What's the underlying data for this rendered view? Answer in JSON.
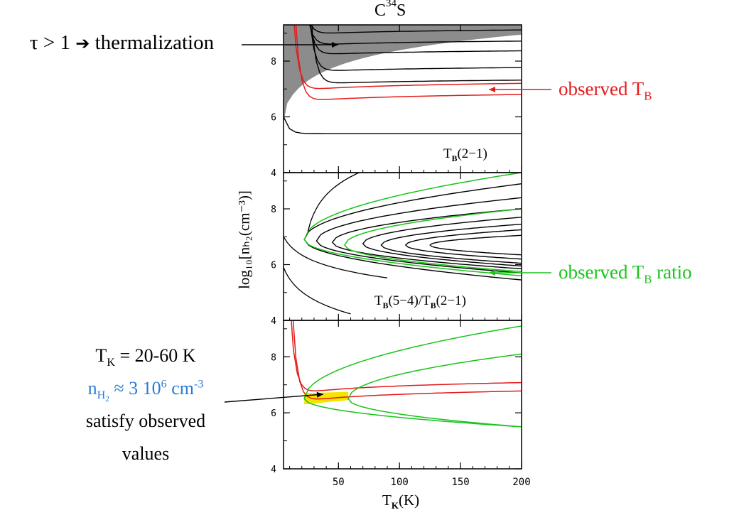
{
  "chart_data": {
    "type": "contour",
    "title": "C³⁴S",
    "title_base": "C",
    "title_sup": "34",
    "title_tail": "S",
    "xlabel": "Tₖ(K)",
    "xlabel_base": "T",
    "xlabel_sub": "K",
    "xlabel_tail": "(K)",
    "ylabel": "log₁₀[nₕ₂(cm⁻³)]",
    "xlim": [
      5,
      200
    ],
    "ylim": [
      4,
      9.3
    ],
    "x_ticks": [
      50,
      100,
      150,
      200
    ],
    "x_tick_labels": [
      "50",
      "100",
      "150",
      "200"
    ],
    "y_ticks": [
      4,
      6,
      8
    ],
    "y_tick_labels": [
      "4",
      "6",
      "8"
    ],
    "panels": [
      {
        "id": "top",
        "label": "Tʙ(2−1)",
        "label_base": "T",
        "label_sub": "B",
        "label_tail": "(2−1)",
        "shaded_region": {
          "name": "optically thick (τ > 1)",
          "color": "#8c8c8c"
        },
        "black_contours_y": [
          9.25,
          8.95,
          8.55,
          8.2,
          7.6,
          7.15
        ],
        "red_contours_y": [
          6.95,
          6.55
        ],
        "bottom_contour_y": 5.4
      },
      {
        "id": "middle",
        "label": "Tʙ(5−4)/Tʙ(2−1)",
        "label_a": "T",
        "label_a_sub": "B",
        "label_mid": "(5−4)/T",
        "label_b_sub": "B",
        "label_tail": "(2−1)",
        "black_nested_loops": [
          {
            "xmin": 22,
            "y0": 6.9,
            "dy_top": 2.0,
            "dy_bot": 1.45
          },
          {
            "xmin": 32,
            "y0": 6.85,
            "dy_top": 1.55,
            "dy_bot": 1.15
          },
          {
            "xmin": 45,
            "y0": 6.8,
            "dy_top": 1.2,
            "dy_bot": 0.95
          },
          {
            "xmin": 70,
            "y0": 6.75,
            "dy_top": 0.95,
            "dy_bot": 0.8
          },
          {
            "xmin": 85,
            "y0": 6.7,
            "dy_top": 0.75,
            "dy_bot": 0.65
          },
          {
            "xmin": 105,
            "y0": 6.7,
            "dy_top": 0.55,
            "dy_bot": 0.5
          },
          {
            "xmin": 125,
            "y0": 6.7,
            "dy_top": 0.35,
            "dy_bot": 0.35
          }
        ],
        "green_loops": [
          {
            "xmin": 22,
            "y0": 6.9,
            "dy_top": 2.4,
            "dy_bot": 1.3
          },
          {
            "xmin": 55,
            "y0": 6.7,
            "dy_top": 1.3,
            "dy_bot": 0.95
          }
        ]
      },
      {
        "id": "bottom",
        "red_contours_y": [
          7.0,
          6.7
        ],
        "green_loops": [
          {
            "xmin": 22,
            "y0": 6.5,
            "dy_top": 2.6,
            "dy_bot": 1.0
          },
          {
            "xmin": 58,
            "y0": 6.5,
            "dy_top": 1.6,
            "dy_bot": 1.0
          }
        ],
        "solution_region": {
          "x": [
            22,
            58
          ],
          "y": [
            6.3,
            6.7
          ],
          "color": "#f5e300"
        }
      }
    ]
  },
  "annotations": {
    "thermalization": {
      "tau": "τ > 1",
      "arrow_glyph": "➔",
      "text": "thermalization"
    },
    "observed_tb": {
      "text": "observed T",
      "sub": "B",
      "color": "#e31b1b"
    },
    "observed_ratio": {
      "text": "observed T",
      "sub": "B",
      "tail": " ratio",
      "color": "#19c419"
    },
    "solution": {
      "tk_line": "T",
      "tk_sub": "K",
      "tk_value": " = 20-60 K",
      "nh_base": "n",
      "nh_sub": "H",
      "nh_sub2": "2",
      "nh_mid": " ≈ 3 10",
      "nh_exp": "6",
      "nh_unit": " cm",
      "nh_unit_exp": "-3",
      "nh_color": "#2b7bd6",
      "line3": "satisfy observed",
      "line4": "values"
    }
  },
  "colors": {
    "red": "#e31b1b",
    "green": "#19c419",
    "black": "#000000",
    "shade": "#8c8c8c",
    "yellow": "#f5e300"
  }
}
